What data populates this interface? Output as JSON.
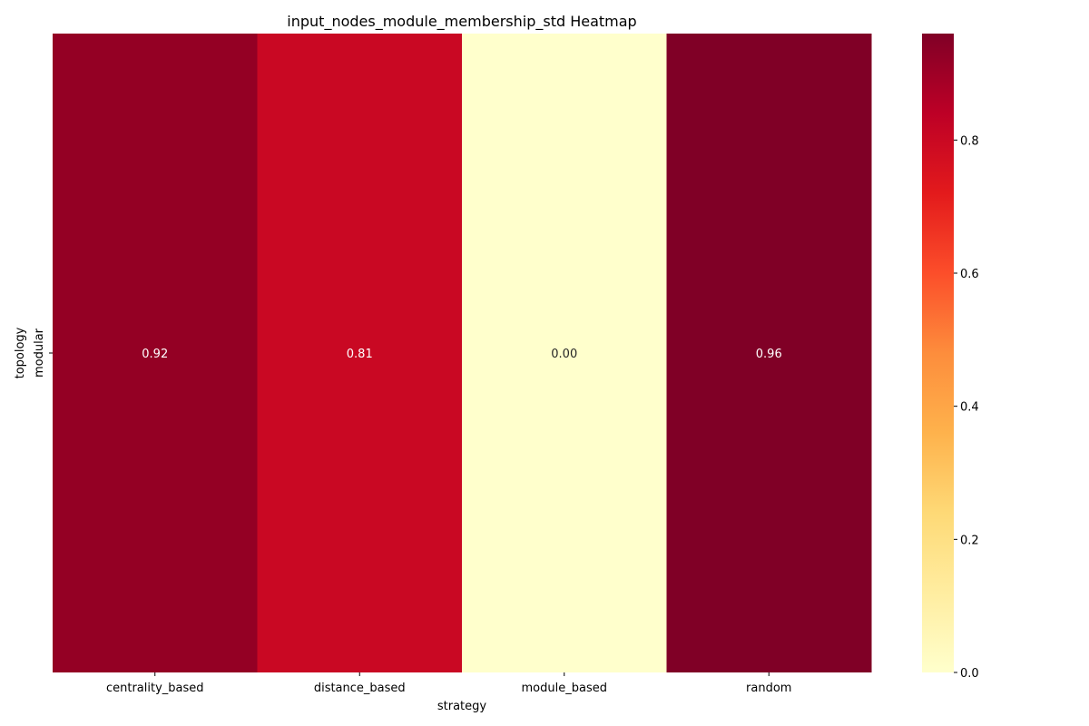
{
  "chart_data": {
    "type": "heatmap",
    "title": "input_nodes_module_membership_std Heatmap",
    "xlabel": "strategy",
    "ylabel": "topology",
    "x_categories": [
      "centrality_based",
      "distance_based",
      "module_based",
      "random"
    ],
    "y_categories": [
      "modular"
    ],
    "values": [
      [
        0.92,
        0.81,
        0.0,
        0.96
      ]
    ],
    "value_labels": [
      [
        "0.92",
        "0.81",
        "0.00",
        "0.96"
      ]
    ],
    "colormap": "YlOrRd",
    "colorbar": {
      "range": [
        0.0,
        0.96
      ],
      "ticks": [
        0.0,
        0.2,
        0.4,
        0.6,
        0.8
      ],
      "tick_labels": [
        "0.0",
        "0.2",
        "0.4",
        "0.6",
        "0.8"
      ],
      "placement": "right"
    },
    "cell_colors": [
      "#940024",
      "#c90823",
      "#ffffcc",
      "#800026"
    ]
  }
}
